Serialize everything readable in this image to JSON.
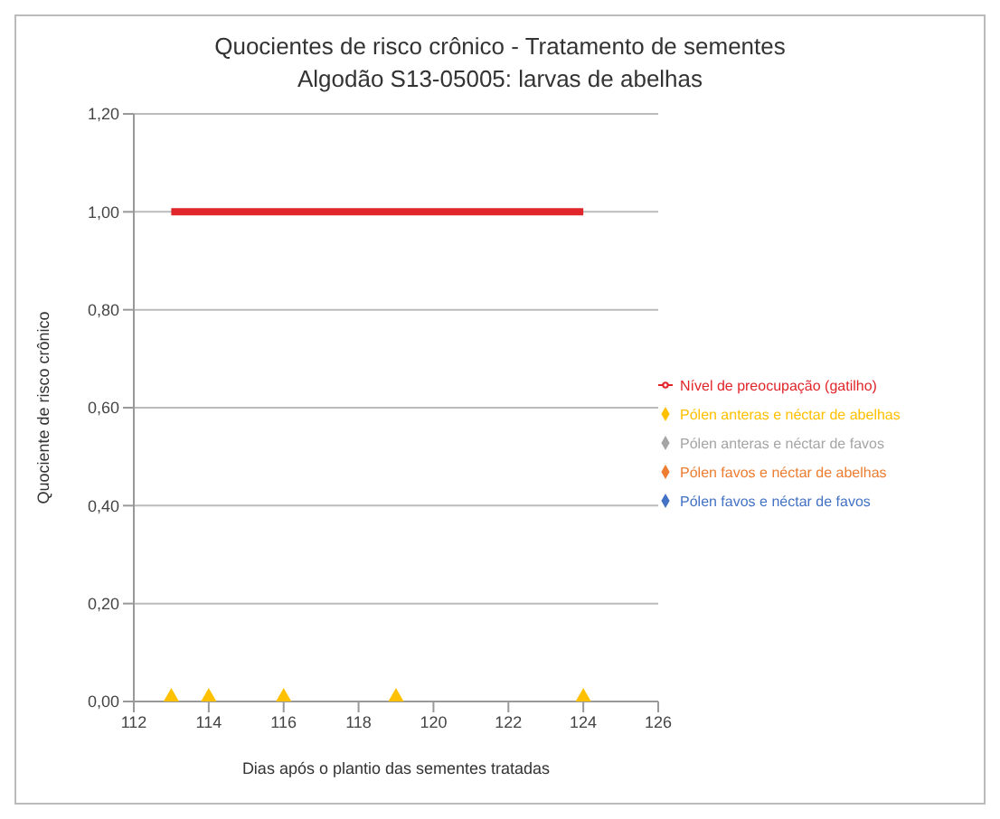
{
  "chart_data": {
    "type": "scatter",
    "title": "Quocientes de risco crônico - Tratamento de sementes",
    "subtitle": "Algodão S13-05005: larvas de abelhas",
    "xlabel": "Dias após o plantio das sementes tratadas",
    "ylabel": "Quociente de risco crônico",
    "x": [
      113,
      114,
      116,
      119,
      124
    ],
    "series": [
      {
        "name": "Pólen favos e néctar de favos",
        "color": "#4472c4",
        "values": [
          null,
          null,
          null,
          null,
          null
        ]
      },
      {
        "name": "Pólen favos e néctar de abelhas",
        "color": "#ed7d31",
        "values": [
          null,
          null,
          null,
          null,
          null
        ]
      },
      {
        "name": "Pólen anteras e néctar de favos",
        "color": "#a5a5a5",
        "values": [
          null,
          null,
          null,
          null,
          null
        ]
      },
      {
        "name": "Pólen anteras e néctar de abelhas",
        "color": "#ffc000",
        "values": [
          0,
          0,
          0,
          0,
          0
        ]
      },
      {
        "name": "Nível de preocupação (gatilho)",
        "type": "line",
        "color": "#e0262b",
        "x": [
          113,
          124
        ],
        "values": [
          1,
          1
        ],
        "marker": "none"
      }
    ],
    "xlim": [
      112,
      126
    ],
    "xticks": [
      112,
      114,
      116,
      118,
      120,
      122,
      124,
      126
    ],
    "ylim": [
      0,
      1.2
    ],
    "yticks": [
      {
        "value": 0,
        "label": "0,00"
      },
      {
        "value": 0.2,
        "label": "0,20"
      },
      {
        "value": 0.4,
        "label": "0,40"
      },
      {
        "value": 0.6,
        "label": "0,60"
      },
      {
        "value": 0.8,
        "label": "0,80"
      },
      {
        "value": 1,
        "label": "1,00"
      },
      {
        "value": 1.2,
        "label": "1,20"
      }
    ],
    "grid": "y",
    "legend": "right",
    "marker": "diamond"
  }
}
